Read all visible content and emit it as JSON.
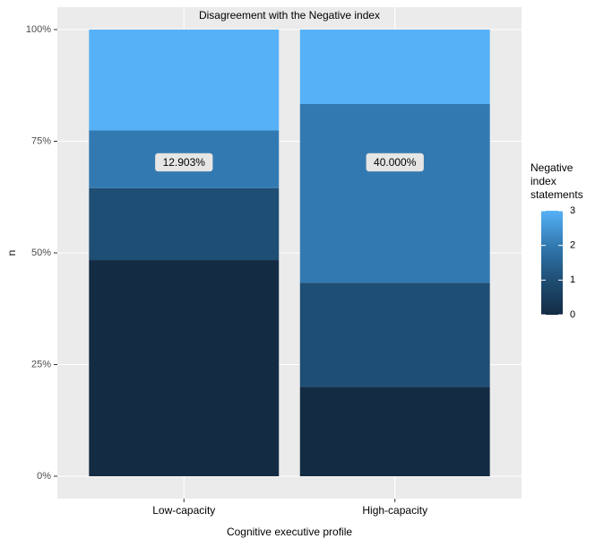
{
  "chart_data": {
    "type": "stacked_bar",
    "title": "Disagreement with the Negative index",
    "x_label": "Cognitive executive profile",
    "y_label": "n",
    "categories": [
      "Low-capacity",
      "High-capacity"
    ],
    "series": [
      {
        "name": "0",
        "color": "#132b43",
        "values": [
          48.387,
          20.0
        ]
      },
      {
        "name": "1",
        "color": "#1f4e74",
        "values": [
          16.129,
          23.333
        ]
      },
      {
        "name": "2",
        "color": "#3279b1",
        "values": [
          12.903,
          40.0
        ],
        "value_labels": [
          "12.903%",
          "40.000%"
        ]
      },
      {
        "name": "3",
        "color": "#56b1f7",
        "values": [
          22.581,
          16.667
        ]
      }
    ],
    "ylim": [
      0,
      100
    ],
    "yticks": [
      {
        "value": 0,
        "label": "0%"
      },
      {
        "value": 25,
        "label": "25%"
      },
      {
        "value": 50,
        "label": "50%"
      },
      {
        "value": 75,
        "label": "75%"
      },
      {
        "value": 100,
        "label": "100%"
      }
    ],
    "legend_title": [
      "Negative",
      "index",
      "statements"
    ],
    "legend_position": "right",
    "grid": true
  }
}
